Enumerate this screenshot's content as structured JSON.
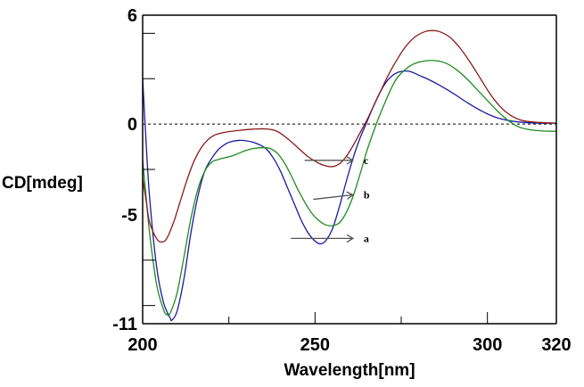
{
  "chart_data": {
    "type": "line",
    "title": "",
    "xlabel": "Wavelength[nm]",
    "ylabel": "CD[mdeg]",
    "xlim": [
      200,
      320
    ],
    "ylim": [
      -11,
      6
    ],
    "x_tick_labels": [
      "200",
      "250",
      "300",
      "320"
    ],
    "x_tick_values": [
      200,
      250,
      300,
      320
    ],
    "x_minor_ticks": [
      225,
      275
    ],
    "y_tick_labels": [
      "6",
      "0",
      "-5",
      "-11"
    ],
    "y_tick_values": [
      6,
      0,
      -5,
      -11
    ],
    "y_minor_ticks": [
      5,
      2.5,
      -2.5,
      -7.5,
      -10
    ],
    "zero_line": true,
    "grid": false,
    "series": [
      {
        "name": "a",
        "color": "#1a1aa0",
        "points": [
          [
            200,
            2.5
          ],
          [
            201,
            -1
          ],
          [
            202,
            -4
          ],
          [
            204,
            -7.8
          ],
          [
            206,
            -9.8
          ],
          [
            208,
            -10.7
          ],
          [
            208.5,
            -10.8
          ],
          [
            210,
            -10.3
          ],
          [
            212,
            -8.5
          ],
          [
            214,
            -6
          ],
          [
            216,
            -4
          ],
          [
            218,
            -2.6
          ],
          [
            220,
            -1.9
          ],
          [
            222,
            -1.4
          ],
          [
            224,
            -1.1
          ],
          [
            226,
            -0.95
          ],
          [
            228,
            -0.9
          ],
          [
            230,
            -0.92
          ],
          [
            232,
            -1.0
          ],
          [
            234,
            -1.15
          ],
          [
            236,
            -1.4
          ],
          [
            238,
            -1.9
          ],
          [
            240,
            -2.6
          ],
          [
            242,
            -3.5
          ],
          [
            244,
            -4.4
          ],
          [
            246,
            -5.3
          ],
          [
            248,
            -6.0
          ],
          [
            250,
            -6.45
          ],
          [
            251.5,
            -6.6
          ],
          [
            253,
            -6.45
          ],
          [
            255,
            -5.8
          ],
          [
            257,
            -4.6
          ],
          [
            259,
            -3.2
          ],
          [
            261,
            -1.9
          ],
          [
            263,
            -0.8
          ],
          [
            265,
            0.1
          ],
          [
            267,
            1.0
          ],
          [
            269,
            1.8
          ],
          [
            271,
            2.4
          ],
          [
            273,
            2.75
          ],
          [
            275,
            2.9
          ],
          [
            277.5,
            2.9
          ],
          [
            280,
            2.7
          ],
          [
            283,
            2.45
          ],
          [
            286,
            2.15
          ],
          [
            290,
            1.7
          ],
          [
            294,
            1.2
          ],
          [
            298,
            0.75
          ],
          [
            302,
            0.4
          ],
          [
            306,
            0.2
          ],
          [
            310,
            0.1
          ],
          [
            315,
            0.05
          ],
          [
            320,
            0.05
          ]
        ]
      },
      {
        "name": "b",
        "color": "#1e8c1e",
        "points": [
          [
            200,
            -2
          ],
          [
            201,
            -4
          ],
          [
            202,
            -6
          ],
          [
            204,
            -8.8
          ],
          [
            206,
            -10.2
          ],
          [
            207,
            -10.5
          ],
          [
            208,
            -10.4
          ],
          [
            210,
            -9.3
          ],
          [
            212,
            -7.3
          ],
          [
            214,
            -5.2
          ],
          [
            216,
            -3.6
          ],
          [
            218,
            -2.6
          ],
          [
            220,
            -2.1
          ],
          [
            222,
            -1.95
          ],
          [
            224,
            -1.85
          ],
          [
            226,
            -1.75
          ],
          [
            228,
            -1.6
          ],
          [
            230,
            -1.45
          ],
          [
            232,
            -1.35
          ],
          [
            235,
            -1.3
          ],
          [
            237,
            -1.35
          ],
          [
            239,
            -1.6
          ],
          [
            241,
            -2.1
          ],
          [
            243,
            -2.8
          ],
          [
            245,
            -3.6
          ],
          [
            247,
            -4.3
          ],
          [
            249,
            -4.9
          ],
          [
            251,
            -5.3
          ],
          [
            253,
            -5.55
          ],
          [
            255,
            -5.6
          ],
          [
            257,
            -5.45
          ],
          [
            259,
            -4.9
          ],
          [
            261,
            -4.0
          ],
          [
            263,
            -2.8
          ],
          [
            265,
            -1.5
          ],
          [
            267,
            -0.4
          ],
          [
            269,
            0.6
          ],
          [
            271,
            1.5
          ],
          [
            273,
            2.3
          ],
          [
            275,
            2.8
          ],
          [
            278,
            3.25
          ],
          [
            281,
            3.45
          ],
          [
            284.5,
            3.5
          ],
          [
            288,
            3.35
          ],
          [
            291,
            3.0
          ],
          [
            294,
            2.5
          ],
          [
            297,
            1.9
          ],
          [
            300,
            1.3
          ],
          [
            303,
            0.7
          ],
          [
            306,
            0.2
          ],
          [
            309,
            -0.15
          ],
          [
            312,
            -0.3
          ],
          [
            316,
            -0.38
          ],
          [
            320,
            -0.4
          ]
        ]
      },
      {
        "name": "c",
        "color": "#8b1a1a",
        "points": [
          [
            200,
            -3
          ],
          [
            201,
            -4.2
          ],
          [
            202,
            -5.4
          ],
          [
            204,
            -6.3
          ],
          [
            205.5,
            -6.5
          ],
          [
            207,
            -6.3
          ],
          [
            209,
            -5.4
          ],
          [
            211,
            -4.2
          ],
          [
            213,
            -3
          ],
          [
            215,
            -2
          ],
          [
            217,
            -1.3
          ],
          [
            219,
            -0.85
          ],
          [
            221,
            -0.6
          ],
          [
            224,
            -0.45
          ],
          [
            228,
            -0.35
          ],
          [
            232,
            -0.28
          ],
          [
            236,
            -0.27
          ],
          [
            239,
            -0.4
          ],
          [
            242,
            -0.8
          ],
          [
            245,
            -1.3
          ],
          [
            248,
            -1.8
          ],
          [
            251,
            -2.15
          ],
          [
            253,
            -2.3
          ],
          [
            255,
            -2.35
          ],
          [
            257,
            -2.2
          ],
          [
            259,
            -1.8
          ],
          [
            261,
            -1.2
          ],
          [
            263,
            -0.5
          ],
          [
            265,
            0.2
          ],
          [
            267,
            1.0
          ],
          [
            269,
            1.8
          ],
          [
            271,
            2.6
          ],
          [
            273,
            3.3
          ],
          [
            276,
            4.2
          ],
          [
            279,
            4.8
          ],
          [
            282,
            5.1
          ],
          [
            284,
            5.15
          ],
          [
            286,
            5.1
          ],
          [
            289,
            4.8
          ],
          [
            292,
            4.2
          ],
          [
            295,
            3.4
          ],
          [
            298,
            2.5
          ],
          [
            301,
            1.6
          ],
          [
            304,
            0.9
          ],
          [
            307,
            0.45
          ],
          [
            310,
            0.2
          ],
          [
            314,
            0.1
          ],
          [
            320,
            0.05
          ]
        ]
      }
    ],
    "annotations": [
      {
        "label": "c",
        "arrow_from": [
          247,
          -2.0
        ],
        "arrow_to": [
          261,
          -2.0
        ]
      },
      {
        "label": "b",
        "arrow_from": [
          249.5,
          -4.15
        ],
        "arrow_to": [
          261,
          -3.9
        ]
      },
      {
        "label": "a",
        "arrow_from": [
          243,
          -6.3
        ],
        "arrow_to": [
          261,
          -6.3
        ]
      }
    ]
  }
}
